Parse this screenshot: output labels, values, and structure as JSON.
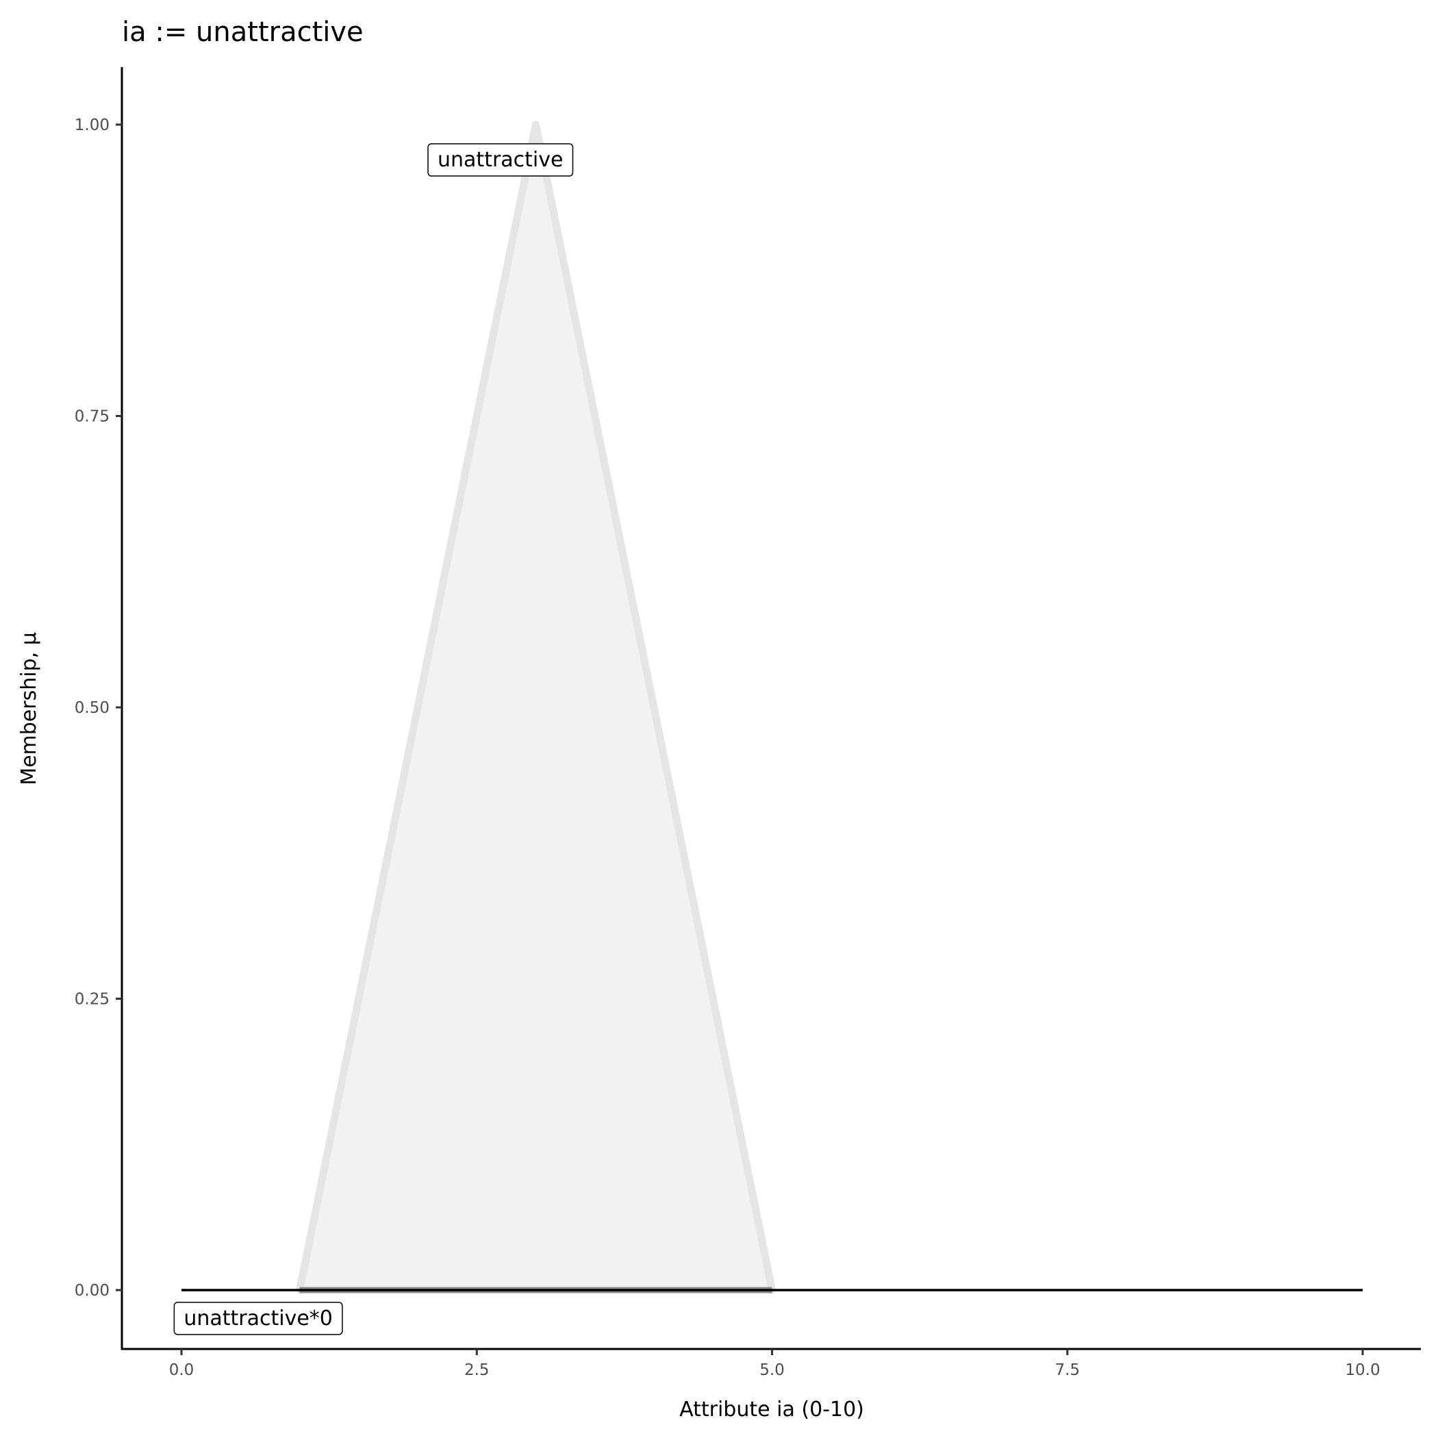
{
  "chart_data": {
    "type": "area",
    "title": "ia := unattractive",
    "xlabel": "Attribute ia (0-10)",
    "ylabel": "Membership, μ",
    "xlim": [
      -0.5,
      10.5
    ],
    "ylim": [
      -0.05,
      1.05
    ],
    "x_ticks": [
      0,
      2.5,
      5,
      7.5,
      10
    ],
    "x_tick_labels": [
      "0.0",
      "2.5",
      "5.0",
      "7.5",
      "10.0"
    ],
    "y_ticks": [
      0,
      0.25,
      0.5,
      0.75,
      1
    ],
    "y_tick_labels": [
      "0.00",
      "0.25",
      "0.50",
      "0.75",
      "1.00"
    ],
    "grid": false,
    "series": [
      {
        "name": "unattractive",
        "x": [
          1,
          3,
          5
        ],
        "y": [
          0,
          1,
          0
        ],
        "fill": "#f2f2f2",
        "stroke": "#e5e5e5"
      },
      {
        "name": "unattractive*0",
        "x": [
          0,
          10
        ],
        "y": [
          0,
          0
        ],
        "stroke": "#000000"
      }
    ],
    "annotations": [
      {
        "text": "unattractive",
        "x": 2.7,
        "y": 0.97
      },
      {
        "text": "unattractive*0",
        "x": 0.65,
        "y": -0.024
      }
    ]
  }
}
